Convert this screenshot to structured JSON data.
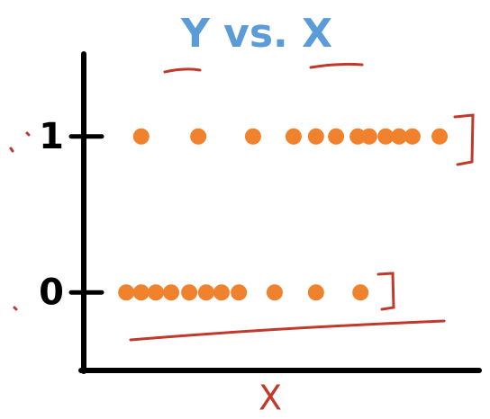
{
  "chart_data": {
    "type": "scatter",
    "title": "Y vs. X",
    "xlabel": "X",
    "x": [
      14.6,
      29.1,
      43.0,
      53.3,
      59.0,
      64.1,
      69.6,
      72.5,
      76.7,
      80.1,
      83.5,
      90.4,
      10.8,
      14.6,
      18.3,
      22.2,
      26.8,
      31.1,
      35.0,
      39.4,
      48.5,
      59.0,
      70.3
    ],
    "y": [
      1,
      1,
      1,
      1,
      1,
      1,
      1,
      1,
      1,
      1,
      1,
      1,
      0,
      0,
      0,
      0,
      0,
      0,
      0,
      0,
      0,
      0,
      0
    ],
    "color": "#f0822e",
    "xlim": [
      0,
      100
    ],
    "ylim": [
      -0.5,
      1.5
    ],
    "yticks": [
      0,
      1
    ]
  }
}
